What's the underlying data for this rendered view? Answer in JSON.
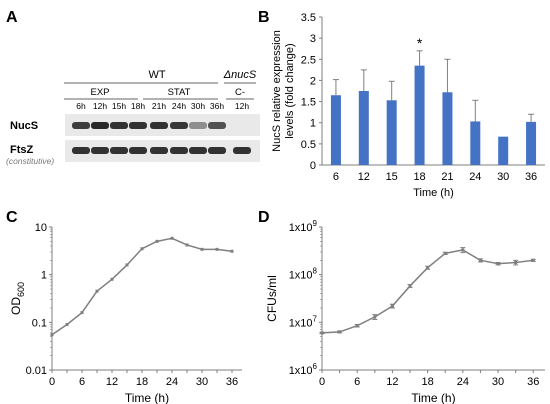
{
  "panels": {
    "a": "A",
    "b": "B",
    "c": "C",
    "d": "D"
  },
  "blot": {
    "wt_label": "WT",
    "mutant_label": "ΔnucS",
    "groups": [
      "EXP",
      "STAT",
      "C-"
    ],
    "lanes": [
      "6h",
      "12h",
      "15h",
      "18h",
      "21h",
      "24h",
      "30h",
      "36h",
      "12h"
    ],
    "rows": [
      {
        "label": "NucS",
        "sublabel": ""
      },
      {
        "label": "FtsZ",
        "sublabel": "(constitutive)"
      }
    ],
    "nucs_intensity": [
      0.85,
      0.95,
      0.9,
      0.9,
      0.9,
      0.88,
      0.45,
      0.75,
      0.0
    ],
    "ftsz_intensity": [
      0.9,
      0.9,
      0.9,
      0.9,
      0.9,
      0.9,
      0.9,
      0.9,
      0.9
    ]
  },
  "colors": {
    "bar": "#4472c4",
    "line": "#7f7f7f",
    "axis": "#7f7f7f",
    "band": "#1e1e1e"
  },
  "chart_data": [
    {
      "panel": "B",
      "type": "bar",
      "categories": [
        "6",
        "12",
        "15",
        "18",
        "21",
        "24",
        "30",
        "36"
      ],
      "values": [
        1.65,
        1.75,
        1.53,
        2.35,
        1.72,
        1.03,
        0.67,
        1.02
      ],
      "errors": [
        0.37,
        0.5,
        0.45,
        0.35,
        0.78,
        0.5,
        0.0,
        0.18
      ],
      "annotations": [
        {
          "category": "18",
          "text": "*"
        }
      ],
      "xlabel": "Time (h)",
      "ylabel": "NucS relative expression levels (fold change)",
      "ylabel_lines": [
        "NucS relative expression",
        "levels (fold change)"
      ],
      "ylim": [
        0,
        3.5
      ],
      "yticks": [
        "0",
        "0.5",
        "1",
        "1.5",
        "2",
        "2.5",
        "3",
        "3.5"
      ]
    },
    {
      "panel": "C",
      "type": "line",
      "scale_y": "log",
      "x": [
        0,
        3,
        6,
        9,
        12,
        15,
        18,
        21,
        24,
        27,
        30,
        33,
        36
      ],
      "y": [
        0.055,
        0.09,
        0.16,
        0.45,
        0.8,
        1.6,
        3.5,
        5.0,
        5.8,
        4.2,
        3.4,
        3.4,
        3.1
      ],
      "xticks": [
        "0",
        "6",
        "12",
        "18",
        "24",
        "30",
        "36"
      ],
      "yticks": [
        "0.01",
        "0.1",
        "1",
        "10"
      ],
      "xlabel": "Time (h)",
      "ylabel": "OD",
      "ylabel_sub": "600",
      "ylim": [
        0.01,
        10
      ],
      "xlim": [
        0,
        38
      ]
    },
    {
      "panel": "D",
      "type": "line",
      "scale_y": "log",
      "x": [
        0,
        3,
        6,
        9,
        12,
        15,
        18,
        21,
        24,
        27,
        30,
        33,
        36
      ],
      "y": [
        6000000,
        6300000,
        8500000,
        13000000,
        22000000,
        58000000,
        140000000,
        280000000,
        330000000,
        200000000,
        170000000,
        180000000,
        200000000
      ],
      "errors": [
        200000,
        300000,
        500000,
        1500000,
        2000000,
        4000000,
        10000000,
        15000000,
        40000000,
        15000000,
        10000000,
        20000000,
        10000000
      ],
      "xticks": [
        "0",
        "3",
        "6",
        "9",
        "12",
        "15",
        "18",
        "21",
        "24",
        "27",
        "30",
        "33",
        "36"
      ],
      "xtick_labels_shown": [
        "0",
        "6",
        "12",
        "18",
        "24",
        "30",
        "36"
      ],
      "yticks": [
        "1x10",
        "1x10",
        "1x10",
        "1x10"
      ],
      "ytick_exp": [
        "6",
        "7",
        "8",
        "9"
      ],
      "xlabel": "Time (h)",
      "ylabel": "CFUs/ml",
      "ylim": [
        1000000,
        1000000000
      ],
      "xlim": [
        0,
        38
      ]
    }
  ]
}
